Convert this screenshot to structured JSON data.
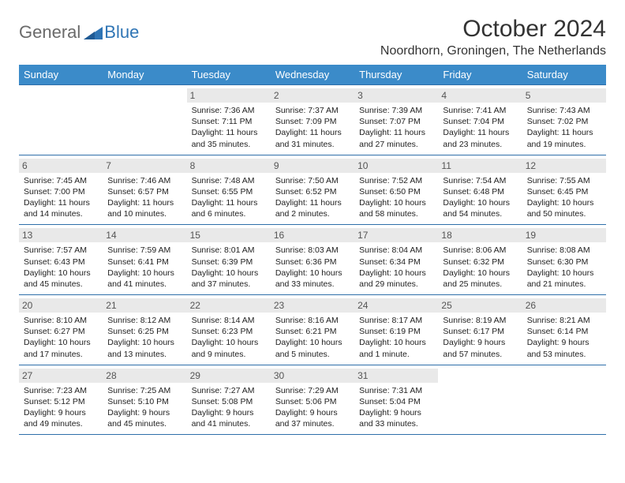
{
  "logo": {
    "general": "General",
    "blue": "Blue"
  },
  "title": "October 2024",
  "location": "Noordhorn, Groningen, The Netherlands",
  "colors": {
    "header_bg": "#3b8bc9",
    "header_text": "#ffffff",
    "rule": "#2f6faa",
    "daynum_bg": "#e9e9e9",
    "logo_gray": "#6a6a6a",
    "logo_blue": "#2f75b5"
  },
  "day_names": [
    "Sunday",
    "Monday",
    "Tuesday",
    "Wednesday",
    "Thursday",
    "Friday",
    "Saturday"
  ],
  "weeks": [
    [
      null,
      null,
      {
        "n": "1",
        "sr": "Sunrise: 7:36 AM",
        "ss": "Sunset: 7:11 PM",
        "dl": "Daylight: 11 hours and 35 minutes."
      },
      {
        "n": "2",
        "sr": "Sunrise: 7:37 AM",
        "ss": "Sunset: 7:09 PM",
        "dl": "Daylight: 11 hours and 31 minutes."
      },
      {
        "n": "3",
        "sr": "Sunrise: 7:39 AM",
        "ss": "Sunset: 7:07 PM",
        "dl": "Daylight: 11 hours and 27 minutes."
      },
      {
        "n": "4",
        "sr": "Sunrise: 7:41 AM",
        "ss": "Sunset: 7:04 PM",
        "dl": "Daylight: 11 hours and 23 minutes."
      },
      {
        "n": "5",
        "sr": "Sunrise: 7:43 AM",
        "ss": "Sunset: 7:02 PM",
        "dl": "Daylight: 11 hours and 19 minutes."
      }
    ],
    [
      {
        "n": "6",
        "sr": "Sunrise: 7:45 AM",
        "ss": "Sunset: 7:00 PM",
        "dl": "Daylight: 11 hours and 14 minutes."
      },
      {
        "n": "7",
        "sr": "Sunrise: 7:46 AM",
        "ss": "Sunset: 6:57 PM",
        "dl": "Daylight: 11 hours and 10 minutes."
      },
      {
        "n": "8",
        "sr": "Sunrise: 7:48 AM",
        "ss": "Sunset: 6:55 PM",
        "dl": "Daylight: 11 hours and 6 minutes."
      },
      {
        "n": "9",
        "sr": "Sunrise: 7:50 AM",
        "ss": "Sunset: 6:52 PM",
        "dl": "Daylight: 11 hours and 2 minutes."
      },
      {
        "n": "10",
        "sr": "Sunrise: 7:52 AM",
        "ss": "Sunset: 6:50 PM",
        "dl": "Daylight: 10 hours and 58 minutes."
      },
      {
        "n": "11",
        "sr": "Sunrise: 7:54 AM",
        "ss": "Sunset: 6:48 PM",
        "dl": "Daylight: 10 hours and 54 minutes."
      },
      {
        "n": "12",
        "sr": "Sunrise: 7:55 AM",
        "ss": "Sunset: 6:45 PM",
        "dl": "Daylight: 10 hours and 50 minutes."
      }
    ],
    [
      {
        "n": "13",
        "sr": "Sunrise: 7:57 AM",
        "ss": "Sunset: 6:43 PM",
        "dl": "Daylight: 10 hours and 45 minutes."
      },
      {
        "n": "14",
        "sr": "Sunrise: 7:59 AM",
        "ss": "Sunset: 6:41 PM",
        "dl": "Daylight: 10 hours and 41 minutes."
      },
      {
        "n": "15",
        "sr": "Sunrise: 8:01 AM",
        "ss": "Sunset: 6:39 PM",
        "dl": "Daylight: 10 hours and 37 minutes."
      },
      {
        "n": "16",
        "sr": "Sunrise: 8:03 AM",
        "ss": "Sunset: 6:36 PM",
        "dl": "Daylight: 10 hours and 33 minutes."
      },
      {
        "n": "17",
        "sr": "Sunrise: 8:04 AM",
        "ss": "Sunset: 6:34 PM",
        "dl": "Daylight: 10 hours and 29 minutes."
      },
      {
        "n": "18",
        "sr": "Sunrise: 8:06 AM",
        "ss": "Sunset: 6:32 PM",
        "dl": "Daylight: 10 hours and 25 minutes."
      },
      {
        "n": "19",
        "sr": "Sunrise: 8:08 AM",
        "ss": "Sunset: 6:30 PM",
        "dl": "Daylight: 10 hours and 21 minutes."
      }
    ],
    [
      {
        "n": "20",
        "sr": "Sunrise: 8:10 AM",
        "ss": "Sunset: 6:27 PM",
        "dl": "Daylight: 10 hours and 17 minutes."
      },
      {
        "n": "21",
        "sr": "Sunrise: 8:12 AM",
        "ss": "Sunset: 6:25 PM",
        "dl": "Daylight: 10 hours and 13 minutes."
      },
      {
        "n": "22",
        "sr": "Sunrise: 8:14 AM",
        "ss": "Sunset: 6:23 PM",
        "dl": "Daylight: 10 hours and 9 minutes."
      },
      {
        "n": "23",
        "sr": "Sunrise: 8:16 AM",
        "ss": "Sunset: 6:21 PM",
        "dl": "Daylight: 10 hours and 5 minutes."
      },
      {
        "n": "24",
        "sr": "Sunrise: 8:17 AM",
        "ss": "Sunset: 6:19 PM",
        "dl": "Daylight: 10 hours and 1 minute."
      },
      {
        "n": "25",
        "sr": "Sunrise: 8:19 AM",
        "ss": "Sunset: 6:17 PM",
        "dl": "Daylight: 9 hours and 57 minutes."
      },
      {
        "n": "26",
        "sr": "Sunrise: 8:21 AM",
        "ss": "Sunset: 6:14 PM",
        "dl": "Daylight: 9 hours and 53 minutes."
      }
    ],
    [
      {
        "n": "27",
        "sr": "Sunrise: 7:23 AM",
        "ss": "Sunset: 5:12 PM",
        "dl": "Daylight: 9 hours and 49 minutes."
      },
      {
        "n": "28",
        "sr": "Sunrise: 7:25 AM",
        "ss": "Sunset: 5:10 PM",
        "dl": "Daylight: 9 hours and 45 minutes."
      },
      {
        "n": "29",
        "sr": "Sunrise: 7:27 AM",
        "ss": "Sunset: 5:08 PM",
        "dl": "Daylight: 9 hours and 41 minutes."
      },
      {
        "n": "30",
        "sr": "Sunrise: 7:29 AM",
        "ss": "Sunset: 5:06 PM",
        "dl": "Daylight: 9 hours and 37 minutes."
      },
      {
        "n": "31",
        "sr": "Sunrise: 7:31 AM",
        "ss": "Sunset: 5:04 PM",
        "dl": "Daylight: 9 hours and 33 minutes."
      },
      null,
      null
    ]
  ]
}
